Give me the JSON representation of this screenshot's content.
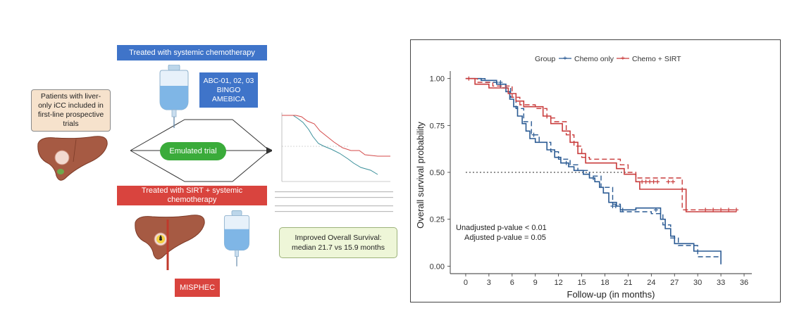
{
  "diagram": {
    "chemo_banner": "Treated with systemic chemotherapy",
    "trials_box": [
      "ABC-01, 02, 03",
      "BINGO",
      "AMEBICA"
    ],
    "patients_box": [
      "Patients with liver-",
      "only iCC included in",
      "first-line prospective",
      "trials"
    ],
    "emulated_label": "Emulated trial",
    "sirt_banner": [
      "Treated with SIRT + systemic",
      "chemotherapy"
    ],
    "misphec_label": "MISPHEC",
    "improved_box": [
      "Improved Overall Survival:",
      "median 21.7 vs 15.9 months"
    ],
    "colors": {
      "blue": "#3f74c9",
      "red": "#d9443e",
      "green": "#3aab3a"
    }
  },
  "chart_data": {
    "type": "line",
    "title": "",
    "legend_title": "Group",
    "xlabel": "Follow-up (in months)",
    "ylabel": "Overall survival probability",
    "xlim": [
      -2,
      37
    ],
    "ylim": [
      -0.04,
      1.04
    ],
    "xticks": [
      0,
      3,
      6,
      9,
      12,
      15,
      18,
      21,
      24,
      27,
      30,
      33,
      36
    ],
    "yticks": [
      0.0,
      0.25,
      0.5,
      0.75,
      1.0
    ],
    "ytick_labels": [
      "0.00",
      "0.25",
      "0.50",
      "0.75",
      "1.00"
    ],
    "median_line": 0.5,
    "annotations": [
      "Unadjusted p-value < 0.01",
      "Adjusted p-value = 0.05"
    ],
    "series": [
      {
        "name": "Chemo only",
        "color": "#2a5a93",
        "solid": [
          [
            0,
            1.0
          ],
          [
            2,
            1.0
          ],
          [
            2,
            0.99
          ],
          [
            4,
            0.99
          ],
          [
            4,
            0.97
          ],
          [
            5.2,
            0.97
          ],
          [
            5.2,
            0.93
          ],
          [
            5.7,
            0.93
          ],
          [
            5.7,
            0.89
          ],
          [
            6.2,
            0.89
          ],
          [
            6.2,
            0.85
          ],
          [
            6.7,
            0.85
          ],
          [
            6.7,
            0.8
          ],
          [
            7.3,
            0.8
          ],
          [
            7.3,
            0.76
          ],
          [
            7.8,
            0.76
          ],
          [
            7.8,
            0.72
          ],
          [
            8.3,
            0.72
          ],
          [
            8.3,
            0.68
          ],
          [
            9,
            0.68
          ],
          [
            9,
            0.66
          ],
          [
            10.5,
            0.66
          ],
          [
            10.5,
            0.62
          ],
          [
            11.5,
            0.62
          ],
          [
            11.5,
            0.58
          ],
          [
            12.3,
            0.58
          ],
          [
            12.3,
            0.55
          ],
          [
            13.3,
            0.55
          ],
          [
            13.3,
            0.53
          ],
          [
            14,
            0.53
          ],
          [
            14,
            0.51
          ],
          [
            15.2,
            0.51
          ],
          [
            15.2,
            0.49
          ],
          [
            16,
            0.49
          ],
          [
            16,
            0.47
          ],
          [
            16.7,
            0.47
          ],
          [
            16.7,
            0.45
          ],
          [
            17.3,
            0.45
          ],
          [
            17.3,
            0.42
          ],
          [
            17.8,
            0.42
          ],
          [
            17.8,
            0.39
          ],
          [
            18.5,
            0.39
          ],
          [
            18.5,
            0.34
          ],
          [
            19.5,
            0.34
          ],
          [
            19.5,
            0.32
          ],
          [
            20,
            0.32
          ],
          [
            20,
            0.3
          ],
          [
            22,
            0.3
          ],
          [
            22,
            0.31
          ],
          [
            25.2,
            0.31
          ],
          [
            25.2,
            0.25
          ],
          [
            25.8,
            0.25
          ],
          [
            25.8,
            0.2
          ],
          [
            26.5,
            0.2
          ],
          [
            26.5,
            0.16
          ],
          [
            27,
            0.16
          ],
          [
            27,
            0.12
          ],
          [
            29.5,
            0.12
          ],
          [
            29.5,
            0.08
          ],
          [
            33,
            0.08
          ],
          [
            33,
            0.01
          ]
        ],
        "dashed": [
          [
            0,
            1.0
          ],
          [
            2.5,
            1.0
          ],
          [
            2.5,
            0.98
          ],
          [
            4.5,
            0.98
          ],
          [
            4.5,
            0.95
          ],
          [
            5.8,
            0.95
          ],
          [
            5.8,
            0.9
          ],
          [
            6.5,
            0.9
          ],
          [
            6.5,
            0.84
          ],
          [
            7.5,
            0.84
          ],
          [
            7.5,
            0.77
          ],
          [
            8.5,
            0.77
          ],
          [
            8.5,
            0.7
          ],
          [
            9.5,
            0.7
          ],
          [
            9.5,
            0.66
          ],
          [
            11,
            0.66
          ],
          [
            11,
            0.61
          ],
          [
            12,
            0.61
          ],
          [
            12,
            0.57
          ],
          [
            13.5,
            0.57
          ],
          [
            13.5,
            0.54
          ],
          [
            14.5,
            0.54
          ],
          [
            14.5,
            0.51
          ],
          [
            16,
            0.51
          ],
          [
            16,
            0.48
          ],
          [
            17.5,
            0.48
          ],
          [
            17.5,
            0.42
          ],
          [
            19,
            0.42
          ],
          [
            19,
            0.33
          ],
          [
            20,
            0.33
          ],
          [
            20,
            0.29
          ],
          [
            24,
            0.29
          ],
          [
            24,
            0.28
          ],
          [
            25.5,
            0.28
          ],
          [
            25.5,
            0.22
          ],
          [
            26.5,
            0.22
          ],
          [
            26.5,
            0.15
          ],
          [
            27.5,
            0.15
          ],
          [
            27.5,
            0.11
          ],
          [
            30,
            0.11
          ],
          [
            30,
            0.05
          ],
          [
            33,
            0.05
          ]
        ],
        "censor": [
          [
            4.5,
            0.98
          ],
          [
            8.8,
            0.7
          ],
          [
            13,
            0.55
          ],
          [
            16.5,
            0.47
          ],
          [
            19,
            0.32
          ],
          [
            19.4,
            0.32
          ],
          [
            20.3,
            0.3
          ],
          [
            24.6,
            0.3
          ]
        ]
      },
      {
        "name": "Chemo + SIRT",
        "color": "#c93c3c",
        "solid": [
          [
            0,
            1.0
          ],
          [
            1.2,
            1.0
          ],
          [
            1.2,
            0.97
          ],
          [
            3,
            0.97
          ],
          [
            3,
            0.95
          ],
          [
            5.5,
            0.95
          ],
          [
            5.5,
            0.92
          ],
          [
            6.5,
            0.92
          ],
          [
            6.5,
            0.88
          ],
          [
            7.5,
            0.88
          ],
          [
            7.5,
            0.85
          ],
          [
            10,
            0.85
          ],
          [
            10,
            0.8
          ],
          [
            11,
            0.8
          ],
          [
            11,
            0.76
          ],
          [
            12.5,
            0.76
          ],
          [
            12.5,
            0.72
          ],
          [
            13.5,
            0.72
          ],
          [
            13.5,
            0.66
          ],
          [
            14.5,
            0.66
          ],
          [
            14.5,
            0.6
          ],
          [
            15.5,
            0.6
          ],
          [
            15.5,
            0.55
          ],
          [
            19.5,
            0.55
          ],
          [
            19.5,
            0.52
          ],
          [
            20.5,
            0.52
          ],
          [
            20.5,
            0.49
          ],
          [
            22,
            0.49
          ],
          [
            22,
            0.45
          ],
          [
            22.5,
            0.45
          ],
          [
            22.5,
            0.41
          ],
          [
            28.5,
            0.41
          ],
          [
            28.5,
            0.29
          ],
          [
            35,
            0.29
          ]
        ],
        "dashed": [
          [
            0,
            1.0
          ],
          [
            1.5,
            1.0
          ],
          [
            1.5,
            0.98
          ],
          [
            3.5,
            0.98
          ],
          [
            3.5,
            0.96
          ],
          [
            6,
            0.96
          ],
          [
            6,
            0.9
          ],
          [
            7,
            0.9
          ],
          [
            7,
            0.86
          ],
          [
            9,
            0.86
          ],
          [
            9,
            0.84
          ],
          [
            10.5,
            0.84
          ],
          [
            10.5,
            0.79
          ],
          [
            11.5,
            0.79
          ],
          [
            11.5,
            0.77
          ],
          [
            13,
            0.77
          ],
          [
            13,
            0.7
          ],
          [
            14,
            0.7
          ],
          [
            14,
            0.64
          ],
          [
            15,
            0.64
          ],
          [
            15,
            0.58
          ],
          [
            16,
            0.58
          ],
          [
            16,
            0.57
          ],
          [
            20,
            0.57
          ],
          [
            20,
            0.54
          ],
          [
            21,
            0.54
          ],
          [
            21,
            0.5
          ],
          [
            22,
            0.5
          ],
          [
            22,
            0.47
          ],
          [
            28,
            0.47
          ],
          [
            28,
            0.3
          ],
          [
            35,
            0.3
          ]
        ],
        "censor": [
          [
            0.4,
            1.0
          ],
          [
            22.8,
            0.45
          ],
          [
            23.3,
            0.45
          ],
          [
            23.8,
            0.45
          ],
          [
            24.3,
            0.45
          ],
          [
            24.8,
            0.45
          ],
          [
            26.2,
            0.45
          ],
          [
            26.8,
            0.45
          ],
          [
            31,
            0.3
          ],
          [
            32,
            0.3
          ],
          [
            33,
            0.3
          ],
          [
            34,
            0.3
          ],
          [
            35,
            0.3
          ]
        ]
      }
    ]
  }
}
